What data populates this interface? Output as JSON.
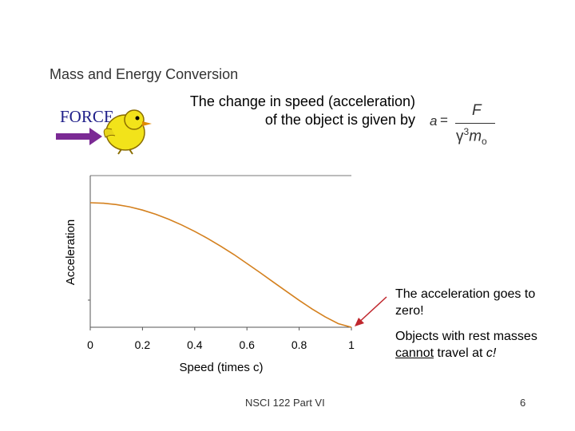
{
  "slide": {
    "title": "Mass and Energy Conversion",
    "force_label": "FORCE",
    "intro_line1": "The change in speed (acceleration)",
    "intro_line2": "of the object is given by",
    "formula": {
      "lhs": "a",
      "eq": "=",
      "numerator": "F",
      "gamma": "γ",
      "exponent": "3",
      "mass": "m",
      "subscript": "o"
    },
    "note_zero": "The acceleration goes to zero!",
    "note_travel_pre": "Objects with rest masses ",
    "note_travel_emph": "cannot",
    "note_travel_mid": " travel at ",
    "note_travel_c": "c!",
    "footer": "NSCI 122 Part VI",
    "page_number": "6"
  },
  "colors": {
    "curve": "#d4801e",
    "arrow": "#c0272d",
    "force_arrow": "#7b2a94",
    "force_text": "#20208a"
  },
  "icons": {
    "mascot": "yellow-bird-icon",
    "force_arrow": "right-arrow-icon"
  },
  "chart_data": {
    "type": "line",
    "xlabel": "Speed (times c)",
    "ylabel": "Acceleration",
    "xlim": [
      0,
      1
    ],
    "xticks": [
      "0",
      "0.2",
      "0.4",
      "0.6",
      "0.8",
      "1"
    ],
    "y_tick_labels": false,
    "grid": false,
    "series": [
      {
        "x": [
          0,
          0.05,
          0.1,
          0.15,
          0.2,
          0.25,
          0.3,
          0.35,
          0.4,
          0.45,
          0.5,
          0.55,
          0.6,
          0.65,
          0.7,
          0.75,
          0.8,
          0.85,
          0.9,
          0.95,
          1.0
        ],
        "y": [
          1.0,
          0.996,
          0.985,
          0.967,
          0.941,
          0.908,
          0.868,
          0.822,
          0.77,
          0.713,
          0.65,
          0.584,
          0.512,
          0.439,
          0.364,
          0.29,
          0.216,
          0.146,
          0.083,
          0.029,
          0.0
        ]
      }
    ]
  }
}
